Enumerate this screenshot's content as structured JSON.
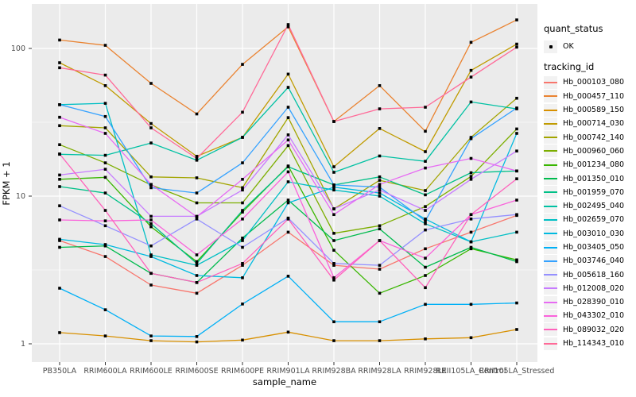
{
  "figure": {
    "background": "#FFFFFF",
    "panel_bg": "#EBEBEB",
    "grid_color": "#FFFFFF",
    "tick_color": "#333333",
    "tick_label_color": "#4D4D4D",
    "marker_color": "#000000",
    "legend_key_bg": "#F2F2F2"
  },
  "axes": {
    "x_title": "sample_name",
    "y_title": "FPKM + 1",
    "y_tick_labels": [
      "100",
      "10",
      "1"
    ],
    "y_tick_values": [
      100,
      10,
      1
    ]
  },
  "legend": {
    "quant_status_title": "quant_status",
    "ok_label": "OK",
    "tracking_title": "tracking_id"
  },
  "chart_data": {
    "type": "line",
    "title": "",
    "xlabel": "sample_name",
    "ylabel": "FPKM + 1",
    "y_scale": "log10",
    "ylim": [
      1,
      200
    ],
    "grid": true,
    "legend_position": "right",
    "marker": "small-black-square",
    "x": [
      "PB350LA",
      "RRIM600LA",
      "RRIM600LE",
      "RRIM600SE",
      "RRIM600PE",
      "RRIM901LA",
      "RRIM928BA",
      "RRIM928LA",
      "RRIM928LE",
      "RRII105LA_Control",
      "RRII105LA_Stressed"
    ],
    "series": [
      {
        "name": "Hb_000103_080",
        "color": "#F8766D",
        "values": [
          5.0,
          3.9,
          2.5,
          2.2,
          3.4,
          5.7,
          3.4,
          3.2,
          4.4,
          5.7,
          7.4
        ]
      },
      {
        "name": "Hb_000457_110",
        "color": "#EA8331",
        "values": [
          114,
          105,
          58,
          36,
          78,
          140,
          32,
          56,
          27.5,
          110,
          156
        ]
      },
      {
        "name": "Hb_000589_150",
        "color": "#D89000",
        "values": [
          1.19,
          1.13,
          1.05,
          1.03,
          1.06,
          1.2,
          1.05,
          1.05,
          1.08,
          1.1,
          1.25
        ]
      },
      {
        "name": "Hb_000714_030",
        "color": "#C09B00",
        "values": [
          80,
          56,
          31,
          18.6,
          25,
          67,
          15.8,
          28.7,
          20,
          71,
          107
        ]
      },
      {
        "name": "Hb_000742_140",
        "color": "#A3A500",
        "values": [
          30,
          29,
          13.5,
          13.3,
          11.4,
          34,
          8.2,
          12.8,
          10.9,
          25,
          46
        ]
      },
      {
        "name": "Hb_000960_060",
        "color": "#7CAE00",
        "values": [
          22.3,
          16.8,
          11.9,
          9.0,
          9.0,
          22,
          5.6,
          6.3,
          8.5,
          13.6,
          28.5
        ]
      },
      {
        "name": "Hb_001234_080",
        "color": "#39B600",
        "values": [
          13.0,
          13.4,
          6.2,
          3.6,
          7.8,
          16,
          4.3,
          2.2,
          2.9,
          4.4,
          3.7
        ]
      },
      {
        "name": "Hb_001350_010",
        "color": "#00BB4E",
        "values": [
          4.5,
          4.6,
          3.0,
          2.6,
          5.2,
          9.4,
          5.0,
          6.0,
          3.3,
          4.5,
          3.6
        ]
      },
      {
        "name": "Hb_001959_070",
        "color": "#00C087",
        "values": [
          11.6,
          10.5,
          6.5,
          3.5,
          8.0,
          15.8,
          11.9,
          13.5,
          10.2,
          14.4,
          14.8
        ]
      },
      {
        "name": "Hb_002495_040",
        "color": "#00C1A3",
        "values": [
          19.2,
          18.9,
          22.9,
          17.5,
          25,
          54.5,
          14.5,
          18.7,
          17.2,
          43.4,
          39
        ]
      },
      {
        "name": "Hb_002659_070",
        "color": "#00BFC4",
        "values": [
          41.6,
          42.5,
          4.0,
          3.4,
          5.0,
          12.5,
          11.0,
          10.0,
          6.5,
          4.9,
          5.7
        ]
      },
      {
        "name": "Hb_003010_030",
        "color": "#00BAE0",
        "values": [
          5.1,
          4.7,
          3.9,
          2.9,
          2.8,
          9.0,
          11.5,
          10.5,
          7.0,
          4.9,
          26.6
        ]
      },
      {
        "name": "Hb_003405_050",
        "color": "#00B0F6",
        "values": [
          2.38,
          1.7,
          1.13,
          1.12,
          1.86,
          2.87,
          1.41,
          1.41,
          1.85,
          1.85,
          1.89
        ]
      },
      {
        "name": "Hb_003746_040",
        "color": "#35A2FF",
        "values": [
          41.6,
          34.6,
          11.4,
          10.5,
          16.8,
          40,
          11.9,
          11.5,
          6.8,
          24.5,
          39.5
        ]
      },
      {
        "name": "Hb_005618_160",
        "color": "#9590FF",
        "values": [
          8.6,
          6.3,
          4.6,
          7.0,
          4.5,
          7.1,
          3.5,
          3.4,
          5.9,
          7.0,
          7.5
        ]
      },
      {
        "name": "Hb_012008_020",
        "color": "#C77CFF",
        "values": [
          13.9,
          15.2,
          7.3,
          7.3,
          11.0,
          26,
          8.2,
          11.0,
          8.0,
          13.0,
          20.2
        ]
      },
      {
        "name": "Hb_028390_010",
        "color": "#E76BF3",
        "values": [
          34.2,
          26.6,
          12.0,
          7.25,
          13.0,
          24,
          7.5,
          12.0,
          15.5,
          18.0,
          14.8
        ]
      },
      {
        "name": "Hb_043302_010",
        "color": "#FA62DB",
        "values": [
          6.9,
          6.8,
          6.9,
          4.0,
          7.0,
          14.6,
          2.8,
          5.0,
          3.8,
          7.5,
          9.4
        ]
      },
      {
        "name": "Hb_089032_020",
        "color": "#FF62BC",
        "values": [
          19.3,
          8.0,
          3.0,
          2.6,
          3.5,
          7.0,
          2.7,
          5.0,
          2.4,
          7.5,
          13.1
        ]
      },
      {
        "name": "Hb_114343_010",
        "color": "#FF6A98",
        "values": [
          74,
          66,
          29,
          18,
          37,
          145,
          32,
          39,
          40,
          64,
          102
        ]
      }
    ]
  }
}
